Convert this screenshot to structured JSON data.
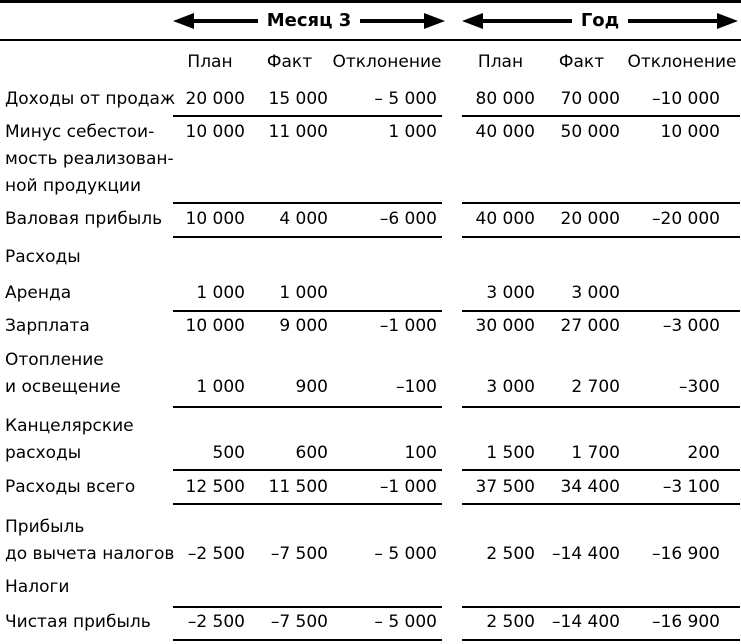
{
  "table": {
    "groups": [
      {
        "label": "Месяц 3"
      },
      {
        "label": "Год"
      }
    ],
    "col_headers": [
      "План",
      "Факт",
      "Отклонение",
      "План",
      "Факт",
      "Отклонение"
    ],
    "rows": [
      {
        "type": "data",
        "label_lines": [
          "Доходы от продаж"
        ],
        "numbers_on_line": "first",
        "cells": [
          "20 000",
          "15 000",
          "– 5 000",
          "80 000",
          "70 000",
          "–10 000"
        ]
      },
      {
        "type": "rule"
      },
      {
        "type": "data",
        "label_lines": [
          "Минус себестои-",
          "мость реализован-",
          "ной продукции"
        ],
        "numbers_on_line": "first",
        "cells": [
          "10 000",
          "11 000",
          "1 000",
          "40 000",
          "50 000",
          "10 000"
        ]
      },
      {
        "type": "rule"
      },
      {
        "type": "data",
        "label_lines": [
          "Валовая прибыль"
        ],
        "numbers_on_line": "first",
        "cells": [
          "10 000",
          "4 000",
          "–6 000",
          "40 000",
          "20 000",
          "–20 000"
        ]
      },
      {
        "type": "rule"
      },
      {
        "type": "data",
        "label_lines": [
          "Расходы"
        ],
        "numbers_on_line": "first",
        "cells": [
          "",
          "",
          "",
          "",
          "",
          ""
        ]
      },
      {
        "type": "data",
        "label_lines": [
          "Аренда"
        ],
        "numbers_on_line": "first",
        "cells": [
          "1 000",
          "1 000",
          "",
          "3 000",
          "3 000",
          ""
        ]
      },
      {
        "type": "rule"
      },
      {
        "type": "data",
        "label_lines": [
          "Зарплата"
        ],
        "numbers_on_line": "first",
        "cells": [
          "10 000",
          "9 000",
          "–1 000",
          "30 000",
          "27 000",
          "–3 000"
        ]
      },
      {
        "type": "data",
        "label_lines": [
          "Отопление",
          "и освещение"
        ],
        "numbers_on_line": "last",
        "cells": [
          "1 000",
          "900",
          "–100",
          "3 000",
          "2 700",
          "–300"
        ]
      },
      {
        "type": "rule"
      },
      {
        "type": "data",
        "label_lines": [
          "Канцелярские",
          "расходы"
        ],
        "numbers_on_line": "last",
        "cells": [
          "500",
          "600",
          "100",
          "1 500",
          "1 700",
          "200"
        ]
      },
      {
        "type": "rule"
      },
      {
        "type": "data",
        "label_lines": [
          "Расходы всего"
        ],
        "numbers_on_line": "first",
        "cells": [
          "12 500",
          "11 500",
          "–1 000",
          "37 500",
          "34 400",
          "–3 100"
        ]
      },
      {
        "type": "rule"
      },
      {
        "type": "data",
        "label_lines": [
          "Прибыль",
          "до вычета налогов"
        ],
        "numbers_on_line": "last",
        "cells": [
          "–2 500",
          "–7 500",
          "– 5 000",
          "2 500",
          "–14 400",
          "–16 900"
        ]
      },
      {
        "type": "data",
        "label_lines": [
          "Налоги"
        ],
        "numbers_on_line": "first",
        "cells": [
          "",
          "",
          "",
          "",
          "",
          ""
        ]
      },
      {
        "type": "rule"
      },
      {
        "type": "data",
        "label_lines": [
          "Чистая прибыль"
        ],
        "numbers_on_line": "first",
        "cells": [
          "–2 500",
          "–7 500",
          "– 5 000",
          "2 500",
          "–14 400",
          "–16 900"
        ]
      },
      {
        "type": "rule"
      }
    ]
  }
}
